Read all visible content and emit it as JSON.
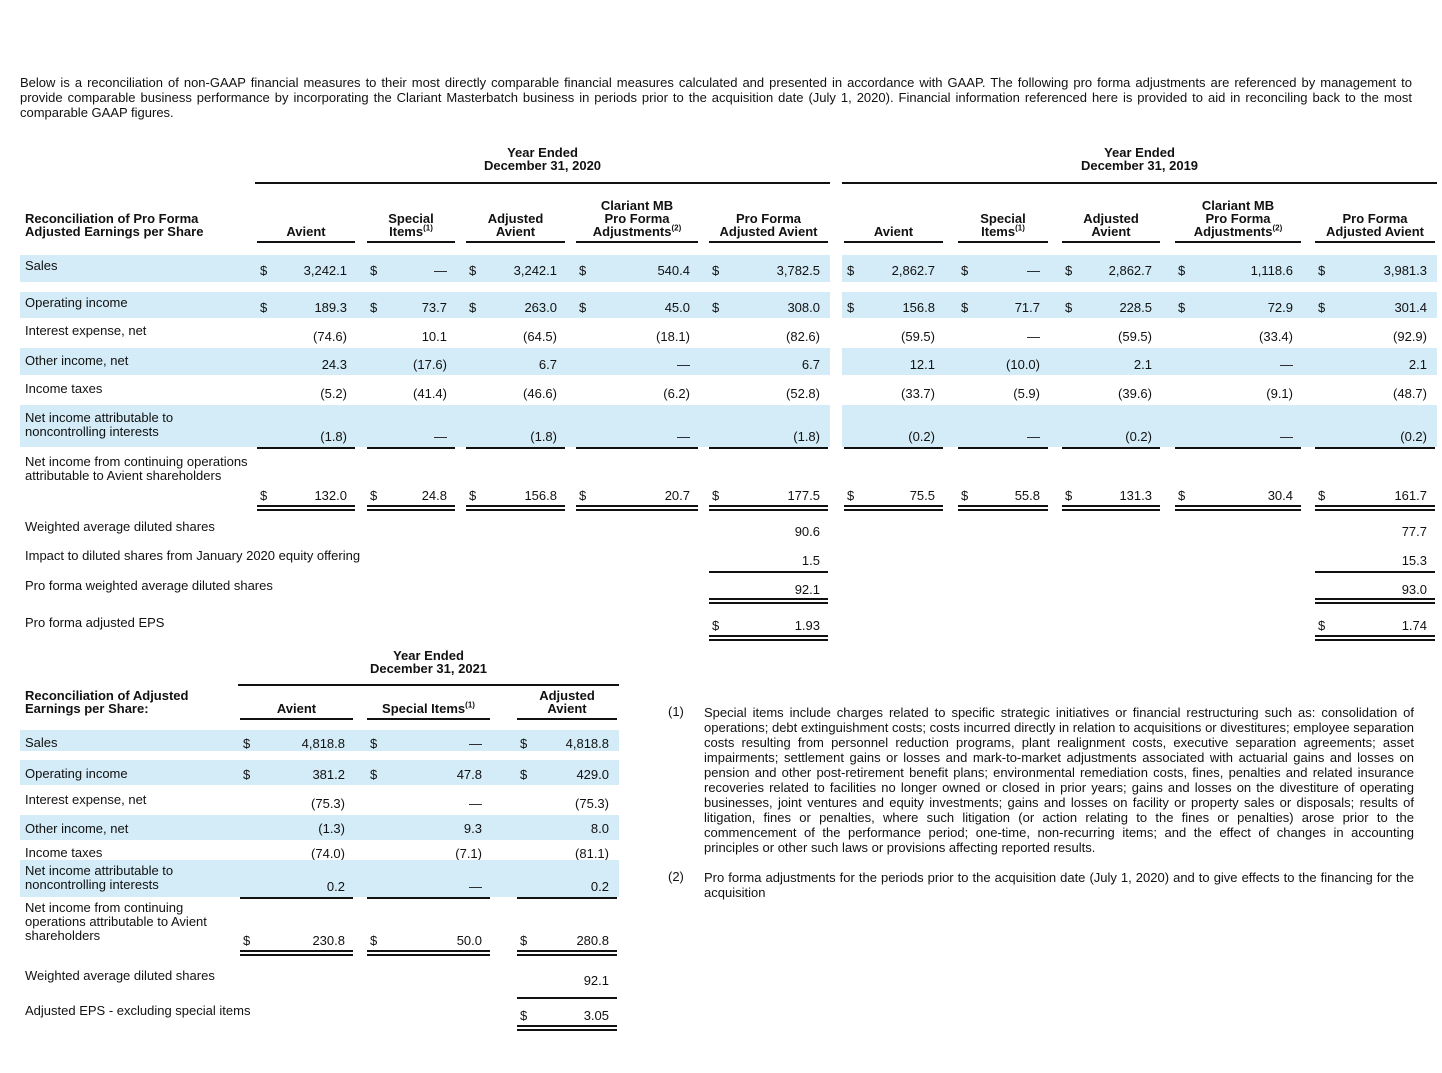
{
  "intro": "Below is a reconciliation of non-GAAP financial measures to their most directly comparable financial measures calculated and presented in accordance with GAAP. The following pro forma adjustments are referenced by management to provide comparable business performance by incorporating the Clariant Masterbatch business in periods prior to the acquisition date (July 1, 2020). Financial information referenced here is provided to aid in reconciling back to the most comparable GAAP figures.",
  "table1": {
    "row_header": [
      "Reconciliation of Pro Forma",
      "Adjusted Earnings per Share"
    ],
    "groups": [
      {
        "period": [
          "Year Ended",
          "December 31, 2020"
        ],
        "columns": [
          [
            "Avient"
          ],
          [
            "Special",
            "Items"
          ],
          [
            "Adjusted",
            "Avient"
          ],
          [
            "Clariant MB",
            "Pro Forma",
            "Adjustments"
          ],
          [
            "Pro Forma",
            "Adjusted Avient"
          ]
        ],
        "column_notes": [
          null,
          "(1)",
          null,
          "(2)",
          null
        ]
      },
      {
        "period": [
          "Year Ended",
          "December 31, 2019"
        ],
        "columns": [
          [
            "Avient"
          ],
          [
            "Special",
            "Items"
          ],
          [
            "Adjusted",
            "Avient"
          ],
          [
            "Clariant MB",
            "Pro Forma",
            "Adjustments"
          ],
          [
            "Pro Forma",
            "Adjusted Avient"
          ]
        ],
        "column_notes": [
          null,
          "(1)",
          null,
          "(2)",
          null
        ]
      }
    ],
    "rows": [
      {
        "label": [
          "Sales"
        ],
        "currency": "$",
        "shaded": true,
        "cells": [
          "3,242.1",
          "—",
          "3,242.1",
          "540.4",
          "3,782.5",
          "2,862.7",
          "—",
          "2,862.7",
          "1,118.6",
          "3,981.3"
        ]
      },
      {
        "label": [
          "Operating income"
        ],
        "currency": "$",
        "shaded": true,
        "cells": [
          "189.3",
          "73.7",
          "263.0",
          "45.0",
          "308.0",
          "156.8",
          "71.7",
          "228.5",
          "72.9",
          "301.4"
        ]
      },
      {
        "label": [
          "Interest expense, net"
        ],
        "cells": [
          "(74.6)",
          "10.1",
          "(64.5)",
          "(18.1)",
          "(82.6)",
          "(59.5)",
          "—",
          "(59.5)",
          "(33.4)",
          "(92.9)"
        ]
      },
      {
        "label": [
          "Other income, net"
        ],
        "shaded": true,
        "cells": [
          "24.3",
          "(17.6)",
          "6.7",
          "—",
          "6.7",
          "12.1",
          "(10.0)",
          "2.1",
          "—",
          "2.1"
        ]
      },
      {
        "label": [
          "Income taxes"
        ],
        "cells": [
          "(5.2)",
          "(41.4)",
          "(46.6)",
          "(6.2)",
          "(52.8)",
          "(33.7)",
          "(5.9)",
          "(39.6)",
          "(9.1)",
          "(48.7)"
        ]
      },
      {
        "label": [
          "Net income attributable to",
          "noncontrolling interests"
        ],
        "shaded": true,
        "rule": "single",
        "cells": [
          "(1.8)",
          "—",
          "(1.8)",
          "—",
          "(1.8)",
          "(0.2)",
          "—",
          "(0.2)",
          "—",
          "(0.2)"
        ]
      },
      {
        "label": [
          "Net income from continuing operations",
          "attributable to Avient shareholders"
        ],
        "currency": "$",
        "rule": "double",
        "cells": [
          "132.0",
          "24.8",
          "156.8",
          "20.7",
          "177.5",
          "75.5",
          "55.8",
          "131.3",
          "30.4",
          "161.7"
        ]
      },
      {
        "label": [
          "Weighted average diluted shares"
        ],
        "cells": [
          null,
          null,
          null,
          null,
          "90.6",
          null,
          null,
          null,
          null,
          "77.7"
        ]
      },
      {
        "label": [
          "Impact to diluted shares from January 2020 equity offering"
        ],
        "rule": "single",
        "cells": [
          null,
          null,
          null,
          null,
          "1.5",
          null,
          null,
          null,
          null,
          "15.3"
        ]
      },
      {
        "label": [
          "Pro forma weighted average diluted shares"
        ],
        "rule": "double",
        "cells": [
          null,
          null,
          null,
          null,
          "92.1",
          null,
          null,
          null,
          null,
          "93.0"
        ]
      },
      {
        "label": [
          "Pro forma adjusted EPS"
        ],
        "currency": "$",
        "rule": "double",
        "cells": [
          null,
          null,
          null,
          null,
          "1.93",
          null,
          null,
          null,
          null,
          "1.74"
        ]
      }
    ]
  },
  "table2": {
    "row_header": [
      "Reconciliation of Adjusted",
      "Earnings per Share:"
    ],
    "groups": [
      {
        "period": [
          "Year Ended",
          "December 31, 2021"
        ],
        "columns": [
          [
            "Avient"
          ],
          [
            "Special Items"
          ],
          [
            "Adjusted",
            "Avient"
          ]
        ],
        "column_notes": [
          null,
          "(1)",
          null
        ]
      }
    ],
    "rows": [
      {
        "label": [
          "Sales"
        ],
        "currency": "$",
        "shaded": true,
        "cells": [
          "4,818.8",
          "—",
          "4,818.8"
        ]
      },
      {
        "label": [
          "Operating income"
        ],
        "currency": "$",
        "shaded": true,
        "cells": [
          "381.2",
          "47.8",
          "429.0"
        ]
      },
      {
        "label": [
          "Interest expense, net"
        ],
        "cells": [
          "(75.3)",
          "—",
          "(75.3)"
        ]
      },
      {
        "label": [
          "Other income, net"
        ],
        "shaded": true,
        "cells": [
          "(1.3)",
          "9.3",
          "8.0"
        ]
      },
      {
        "label": [
          "Income taxes"
        ],
        "cells": [
          "(74.0)",
          "(7.1)",
          "(81.1)"
        ]
      },
      {
        "label": [
          "Net income attributable to",
          "noncontrolling interests"
        ],
        "shaded": true,
        "rule": "single",
        "cells": [
          "0.2",
          "—",
          "0.2"
        ]
      },
      {
        "label": [
          "Net income from continuing",
          "operations attributable to Avient",
          "shareholders"
        ],
        "currency": "$",
        "rule": "double",
        "cells": [
          "230.8",
          "50.0",
          "280.8"
        ]
      },
      {
        "label": [
          "Weighted average diluted shares"
        ],
        "rule": "single",
        "cells": [
          null,
          null,
          "92.1"
        ]
      },
      {
        "label": [
          "Adjusted EPS - excluding special items"
        ],
        "currency": "$",
        "rule": "double",
        "cells": [
          null,
          null,
          "3.05"
        ]
      }
    ]
  },
  "footnotes": [
    {
      "marker": "(1)",
      "text": "Special items include charges related to specific strategic initiatives or financial restructuring such as: consolidation of operations; debt extinguishment costs; costs incurred directly in relation to acquisitions or divestitures; employee separation costs resulting from personnel reduction programs, plant realignment costs, executive separation agreements; asset impairments; settlement gains or losses and mark-to-market adjustments associated with actuarial gains and losses on pension and other post-retirement benefit plans; environmental remediation costs, fines, penalties and related insurance recoveries related to facilities no longer owned or closed in prior years; gains and losses on the divestiture of operating businesses, joint ventures and equity investments; gains and losses on facility or property sales or disposals; results of litigation, fines or penalties, where such litigation (or action relating to the fines or penalties) arose prior to the commencement of the performance period; one-time, non-recurring items; and the effect of changes in accounting principles or other such laws or provisions affecting reported results."
    },
    {
      "marker": "(2)",
      "text": "Pro forma adjustments for the periods prior to the acquisition date (July 1, 2020) and to give effects to the financing for the acquisition"
    }
  ]
}
